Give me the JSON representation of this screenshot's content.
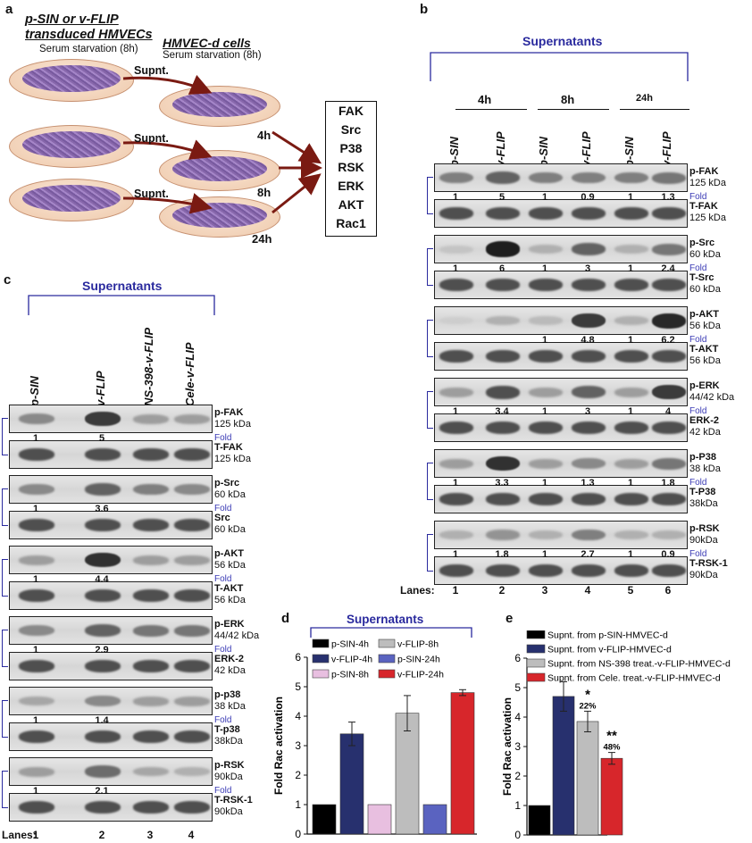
{
  "panel_a": {
    "label": "a",
    "source_title": [
      "p-SIN or v-FLIP",
      "transduced HMVECs"
    ],
    "source_sub": "Serum starvation (8h)",
    "target_title": "HMVEC-d cells",
    "target_sub": "Serum starvation (8h)",
    "supnt": "Supnt.",
    "times": [
      "4h",
      "8h",
      "24h"
    ],
    "markers": [
      "FAK",
      "Src",
      "P38",
      "RSK",
      "ERK",
      "AKT",
      "Rac1"
    ]
  },
  "panel_b": {
    "label": "b",
    "header": "Supernatants",
    "times": [
      "4h",
      "8h",
      "24h"
    ],
    "lanes_header": [
      "p-SIN",
      "v-FLIP",
      "p-SIN",
      "v-FLIP",
      "p-SIN",
      "v-FLIP"
    ],
    "fold_word": "Fold",
    "lanes_label": "Lanes:",
    "lane_numbers": [
      "1",
      "2",
      "3",
      "4",
      "5",
      "6"
    ],
    "blots": [
      {
        "top": [
          "p-FAK",
          "125 kDa"
        ],
        "bottom": [
          "T-FAK",
          "125 kDa"
        ],
        "folds": [
          "1",
          "5",
          "1",
          "0.9",
          "1",
          "1.3"
        ],
        "p": [
          0.45,
          0.6,
          0.45,
          0.45,
          0.45,
          0.5
        ]
      },
      {
        "top": [
          "p-Src",
          "60 kDa"
        ],
        "bottom": [
          "T-Src",
          "60 kDa"
        ],
        "folds": [
          "1",
          "6",
          "1",
          "3",
          "1",
          "2.4"
        ],
        "p": [
          0.1,
          0.95,
          0.2,
          0.6,
          0.2,
          0.5
        ]
      },
      {
        "top": [
          "p-AKT",
          "56 kDa"
        ],
        "bottom": [
          "T-AKT",
          "56 kDa"
        ],
        "folds": [
          "",
          "",
          "1",
          "4.8",
          "1",
          "6.2"
        ],
        "p": [
          0.05,
          0.2,
          0.15,
          0.8,
          0.2,
          0.9
        ]
      },
      {
        "top": [
          "p-ERK",
          "44/42 kDa"
        ],
        "bottom": [
          "ERK-2",
          "42 kDa"
        ],
        "folds": [
          "1",
          "3.4",
          "1",
          "3",
          "1",
          "4"
        ],
        "p": [
          0.3,
          0.7,
          0.3,
          0.6,
          0.3,
          0.8
        ]
      },
      {
        "top": [
          "p-P38",
          "38 kDa"
        ],
        "bottom": [
          "T-P38",
          "38kDa"
        ],
        "folds": [
          "1",
          "3.3",
          "1",
          "1.3",
          "1",
          "1.8"
        ],
        "p": [
          0.3,
          0.85,
          0.3,
          0.4,
          0.3,
          0.5
        ]
      },
      {
        "top": [
          "p-RSK",
          "90kDa"
        ],
        "bottom": [
          "T-RSK-1",
          "90kDa"
        ],
        "folds": [
          "1",
          "1.8",
          "1",
          "2.7",
          "1",
          "0.9"
        ],
        "p": [
          0.2,
          0.35,
          0.2,
          0.45,
          0.2,
          0.2
        ]
      }
    ]
  },
  "panel_c": {
    "label": "c",
    "header": "Supernatants",
    "lanes_header": [
      "p-SIN",
      "v-FLIP",
      "NS-398-v-FLIP",
      "Cele-v-FLIP"
    ],
    "fold_word": "Fold",
    "lanes_label": "Lanes:",
    "lane_numbers": [
      "1",
      "2",
      "3",
      "4"
    ],
    "blots": [
      {
        "top": [
          "p-FAK",
          "125 kDa"
        ],
        "bottom": [
          "T-FAK",
          "125 kDa"
        ],
        "folds": [
          "1",
          "5",
          "",
          ""
        ],
        "p": [
          0.4,
          0.8,
          0.3,
          0.3
        ]
      },
      {
        "top": [
          "p-Src",
          "60 kDa"
        ],
        "bottom": [
          "Src",
          "60 kDa"
        ],
        "folds": [
          "1",
          "3.6",
          "",
          ""
        ],
        "p": [
          0.4,
          0.6,
          0.45,
          0.4
        ]
      },
      {
        "top": [
          "p-AKT",
          "56 kDa"
        ],
        "bottom": [
          "T-AKT",
          "56 kDa"
        ],
        "folds": [
          "1",
          "4.4",
          "",
          ""
        ],
        "p": [
          0.3,
          0.85,
          0.3,
          0.3
        ]
      },
      {
        "top": [
          "p-ERK",
          "44/42 kDa"
        ],
        "bottom": [
          "ERK-2",
          "42 kDa"
        ],
        "folds": [
          "1",
          "2.9",
          "",
          ""
        ],
        "p": [
          0.4,
          0.6,
          0.5,
          0.5
        ]
      },
      {
        "top": [
          "p-p38",
          "38 kDa"
        ],
        "bottom": [
          "T-p38",
          "38kDa"
        ],
        "folds": [
          "1",
          "1.4",
          "",
          ""
        ],
        "p": [
          0.25,
          0.4,
          0.3,
          0.3
        ]
      },
      {
        "top": [
          "p-RSK",
          "90kDa"
        ],
        "bottom": [
          "T-RSK-1",
          "90kDa"
        ],
        "folds": [
          "1",
          "2.1",
          "",
          ""
        ],
        "p": [
          0.3,
          0.55,
          0.25,
          0.2
        ]
      }
    ]
  },
  "panel_d": {
    "label": "d",
    "header": "Supernatants"
  },
  "panel_e": {
    "label": "e"
  },
  "chart_data": [
    {
      "type": "bar",
      "ylabel": "Fold Rac activation",
      "ylim": [
        0,
        6
      ],
      "yticks": [
        "0",
        "1",
        "2",
        "3",
        "4",
        "5",
        "6"
      ],
      "categories": [
        "p-SIN-4h",
        "v-FLIP-4h",
        "p-SIN-8h",
        "v-FLIP-8h",
        "p-SIN-24h",
        "v-FLIP-24h"
      ],
      "values": [
        1,
        3.4,
        1,
        4.1,
        1,
        4.8
      ],
      "errors": [
        0,
        0.4,
        0,
        0.6,
        0,
        0.1
      ],
      "colors": [
        "#000000",
        "#27306e",
        "#e8bfe0",
        "#bdbdbd",
        "#5a63c0",
        "#d7262b"
      ],
      "legend": "top"
    },
    {
      "type": "bar",
      "ylabel": "Fold Rac activation",
      "ylim": [
        0,
        6
      ],
      "yticks": [
        "0",
        "1",
        "2",
        "3",
        "4",
        "5",
        "6"
      ],
      "categories": [
        "Supnt. from p-SIN-HMVEC-d",
        "Supnt. from v-FLIP-HMVEC-d",
        "Supnt. from NS-398 treat.-v-FLIP-HMVEC-d",
        "Supnt. from Cele. treat.-v-FLIP-HMVEC-d"
      ],
      "values": [
        1,
        4.7,
        3.85,
        2.6
      ],
      "errors": [
        0,
        0.5,
        0.35,
        0.2
      ],
      "colors": [
        "#000000",
        "#27306e",
        "#bdbdbd",
        "#d7262b"
      ],
      "annotations": [
        {
          "index": 2,
          "stars": "*",
          "text": "22%"
        },
        {
          "index": 3,
          "stars": "**",
          "text": "48%"
        }
      ],
      "legend": "top"
    }
  ]
}
